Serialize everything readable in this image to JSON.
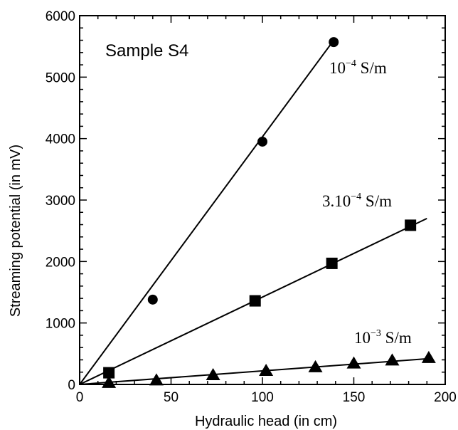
{
  "chart_data": {
    "type": "scatter",
    "title": "",
    "annotation": "Sample S4",
    "xlabel": "Hydraulic head (in cm)",
    "ylabel": "Streaming potential (in mV)",
    "xlim": [
      0,
      200
    ],
    "ylim": [
      0,
      6000
    ],
    "x_ticks": [
      0,
      50,
      100,
      150,
      200
    ],
    "y_ticks": [
      0,
      1000,
      2000,
      3000,
      4000,
      5000,
      6000
    ],
    "grid": false,
    "series": [
      {
        "label_base": "10",
        "label_exp": "−4",
        "label_unit": " S/m",
        "marker": "circle",
        "x": [
          40,
          100,
          139
        ],
        "y": [
          1380,
          3950,
          5570
        ],
        "fit_line": {
          "x": [
            0,
            139
          ],
          "y": [
            0,
            5600
          ]
        }
      },
      {
        "label_base": "3.10",
        "label_exp": "−4",
        "label_unit": " S/m",
        "marker": "square",
        "x": [
          16,
          96,
          138,
          181
        ],
        "y": [
          190,
          1360,
          1970,
          2590
        ],
        "fit_line": {
          "x": [
            0,
            190
          ],
          "y": [
            0,
            2700
          ]
        }
      },
      {
        "label_base": "10",
        "label_exp": "−3",
        "label_unit": " S/m",
        "marker": "triangle",
        "x": [
          16,
          42,
          73,
          102,
          129,
          150,
          171,
          191
        ],
        "y": [
          25,
          65,
          150,
          220,
          280,
          340,
          390,
          430
        ],
        "fit_line": {
          "x": [
            0,
            191
          ],
          "y": [
            0,
            420
          ]
        }
      }
    ]
  }
}
